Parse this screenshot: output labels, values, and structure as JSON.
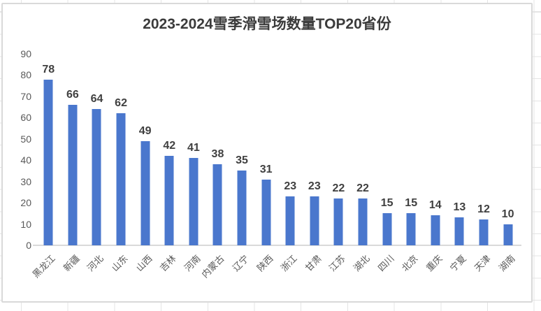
{
  "chart_data": {
    "type": "bar",
    "title": "2023-2024雪季滑雪场数量TOP20省份",
    "categories": [
      "黑龙江",
      "新疆",
      "河北",
      "山东",
      "山西",
      "吉林",
      "河南",
      "内蒙古",
      "辽宁",
      "陕西",
      "浙江",
      "甘肃",
      "江苏",
      "湖北",
      "四川",
      "北京",
      "重庆",
      "宁夏",
      "天津",
      "湖南"
    ],
    "values": [
      78,
      66,
      64,
      62,
      49,
      42,
      41,
      38,
      35,
      31,
      23,
      23,
      22,
      22,
      15,
      15,
      14,
      13,
      12,
      10
    ],
    "xlabel": "",
    "ylabel": "",
    "ylim": [
      0,
      90
    ],
    "yticks": [
      0,
      10,
      20,
      30,
      40,
      50,
      60,
      70,
      80,
      90
    ],
    "grid": "off",
    "legend": "none",
    "value_labels": "above-bars",
    "colors": {
      "bar": "#4a77cd",
      "title_text": "#3b3b3b",
      "value_label_text": "#404040",
      "axis_label_text": "#595959",
      "axis_line": "#d9d9d9",
      "chart_border": "#d9d9d9",
      "chart_background": "#ffffff",
      "sheet_gridline": "#e4e4e4"
    }
  }
}
